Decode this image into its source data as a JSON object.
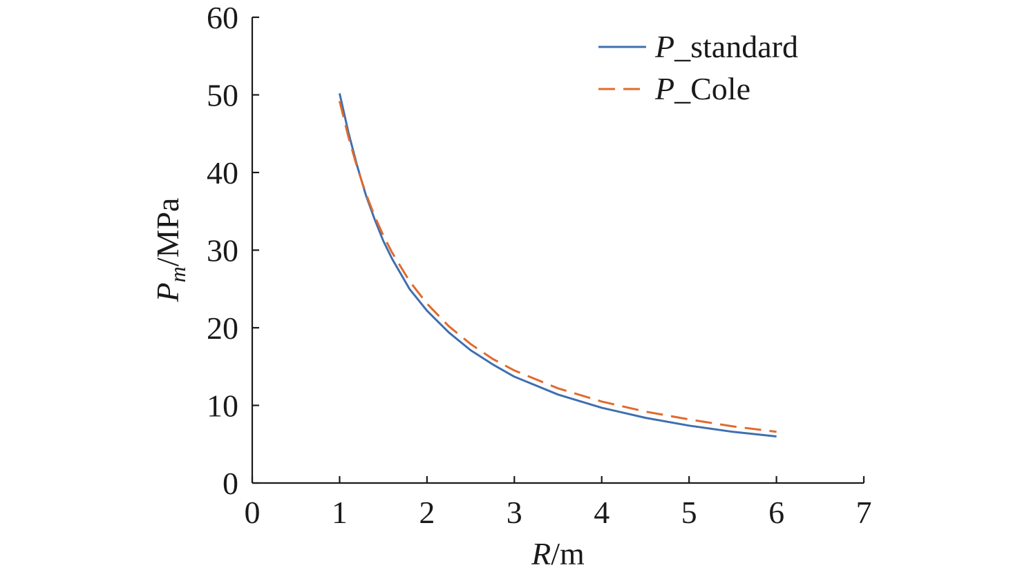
{
  "chart_data": {
    "type": "line",
    "title": "",
    "xlabel": {
      "var": "R",
      "unit": "/m"
    },
    "ylabel": {
      "var": "P",
      "sub": "m",
      "unit": "/MPa"
    },
    "xlim": [
      0,
      7
    ],
    "ylim": [
      0,
      60
    ],
    "xticks": [
      "0",
      "1",
      "2",
      "3",
      "4",
      "5",
      "6",
      "7"
    ],
    "yticks": [
      "0",
      "10",
      "20",
      "30",
      "40",
      "50",
      "60"
    ],
    "grid": false,
    "legend_position": "top-right",
    "series": [
      {
        "name": {
          "var": "P",
          "suffix": "_standard"
        },
        "color": "#3e6fb0",
        "dash": "solid",
        "x": [
          1.0,
          1.1,
          1.2,
          1.3,
          1.4,
          1.5,
          1.6,
          1.8,
          2.0,
          2.25,
          2.5,
          2.75,
          3.0,
          3.5,
          4.0,
          4.5,
          5.0,
          5.5,
          6.0
        ],
        "y": [
          50.2,
          45.2,
          40.9,
          37.1,
          34.0,
          31.2,
          28.9,
          25.0,
          22.2,
          19.4,
          17.1,
          15.3,
          13.7,
          11.4,
          9.7,
          8.4,
          7.4,
          6.6,
          6.0
        ]
      },
      {
        "name": {
          "var": "P",
          "suffix": "_Cole"
        },
        "color": "#e06a2c",
        "dash": "dashed",
        "x": [
          1.0,
          1.1,
          1.2,
          1.3,
          1.4,
          1.5,
          1.6,
          1.8,
          2.0,
          2.25,
          2.5,
          2.75,
          3.0,
          3.5,
          4.0,
          4.5,
          5.0,
          5.5,
          6.0
        ],
        "y": [
          49.2,
          44.6,
          40.7,
          37.3,
          34.4,
          31.9,
          29.7,
          26.0,
          23.1,
          20.2,
          17.9,
          16.0,
          14.5,
          12.2,
          10.5,
          9.2,
          8.2,
          7.3,
          6.6
        ]
      }
    ]
  }
}
